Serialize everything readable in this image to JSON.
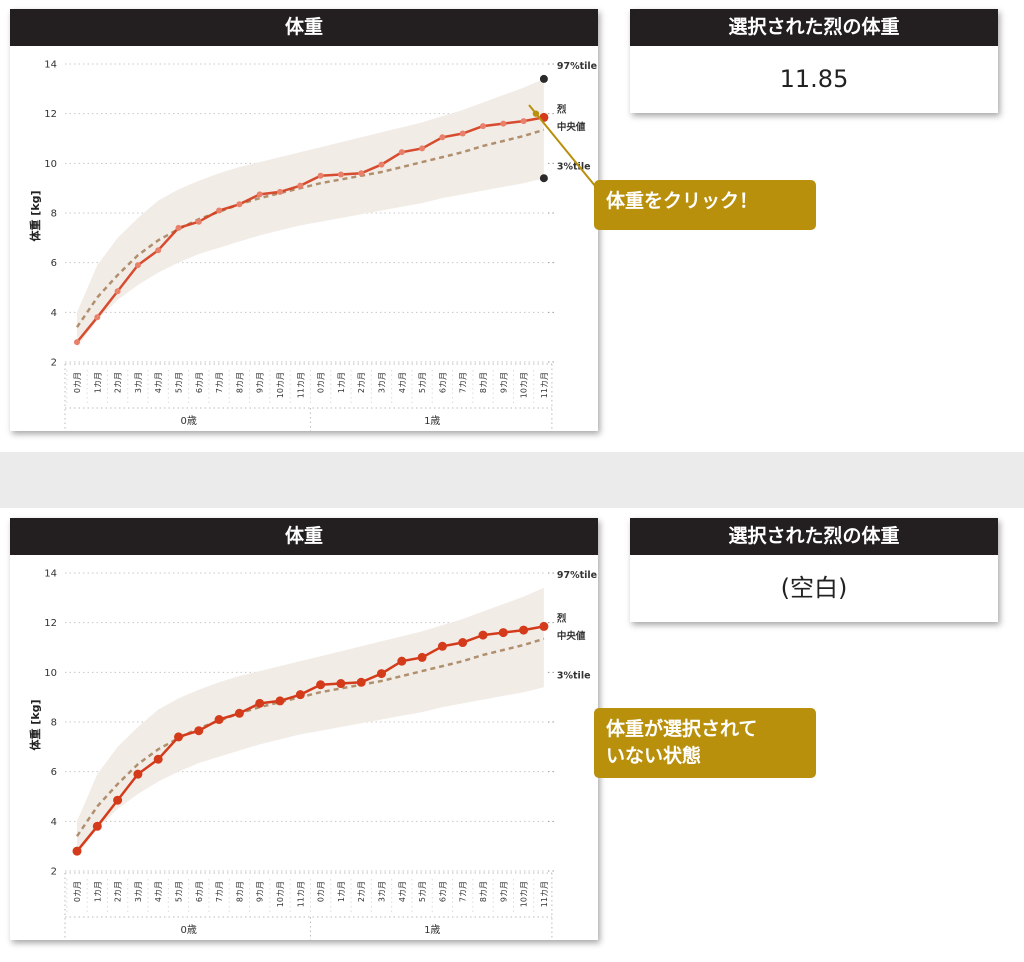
{
  "panels": [
    {
      "chart_title": "体重",
      "value_title": "選択された烈の体重",
      "value": "11.85",
      "callout": "体重をクリック！",
      "selected": true
    },
    {
      "chart_title": "体重",
      "value_title": "選択された烈の体重",
      "value": "(空白)",
      "callout": "体重が選択されて\nいない状態",
      "selected": false
    }
  ],
  "legend": {
    "p97": "97%tile",
    "actual": "烈",
    "median": "中央値",
    "p3": "3%tile"
  },
  "colors": {
    "actual": "#d43b1b",
    "median": "#b08f6e",
    "band": "#f2ece7",
    "header": "#231f20",
    "callout": "#b8900b",
    "marker": "#2a2a2a"
  },
  "chart_data": {
    "type": "line",
    "ylabel": "体重 [kg]",
    "ylim": [
      2,
      14
    ],
    "yticks": [
      2,
      4,
      6,
      8,
      10,
      12,
      14
    ],
    "months": [
      "0カ月",
      "1カ月",
      "2カ月",
      "3カ月",
      "4カ月",
      "5カ月",
      "6カ月",
      "7カ月",
      "8カ月",
      "9カ月",
      "10カ月",
      "11カ月",
      "0カ月",
      "1カ月",
      "2カ月",
      "3カ月",
      "4カ月",
      "5カ月",
      "6カ月",
      "7カ月",
      "8カ月",
      "9カ月",
      "10カ月",
      "11カ月"
    ],
    "years": [
      "0歳",
      "1歳"
    ],
    "series": [
      {
        "name": "烈",
        "values": [
          2.8,
          3.8,
          4.85,
          5.9,
          6.5,
          7.4,
          7.65,
          8.1,
          8.35,
          8.75,
          8.85,
          9.1,
          9.5,
          9.55,
          9.6,
          9.95,
          10.45,
          10.6,
          11.05,
          11.2,
          11.5,
          11.6,
          11.7,
          11.85
        ]
      },
      {
        "name": "中央値",
        "values": [
          3.4,
          4.6,
          5.5,
          6.3,
          6.9,
          7.35,
          7.75,
          8.05,
          8.35,
          8.6,
          8.8,
          9.0,
          9.2,
          9.35,
          9.5,
          9.65,
          9.85,
          10.05,
          10.25,
          10.45,
          10.7,
          10.9,
          11.1,
          11.35
        ]
      },
      {
        "name": "97%tile",
        "values": [
          4.0,
          5.9,
          7.0,
          7.8,
          8.5,
          8.95,
          9.3,
          9.6,
          9.85,
          10.05,
          10.25,
          10.45,
          10.65,
          10.85,
          11.05,
          11.25,
          11.45,
          11.65,
          11.9,
          12.15,
          12.45,
          12.75,
          13.05,
          13.4
        ]
      },
      {
        "name": "3%tile",
        "values": [
          2.6,
          3.7,
          4.5,
          5.1,
          5.6,
          6.0,
          6.35,
          6.6,
          6.85,
          7.1,
          7.3,
          7.5,
          7.65,
          7.8,
          7.95,
          8.1,
          8.25,
          8.4,
          8.6,
          8.75,
          8.9,
          9.05,
          9.2,
          9.4
        ]
      }
    ]
  }
}
